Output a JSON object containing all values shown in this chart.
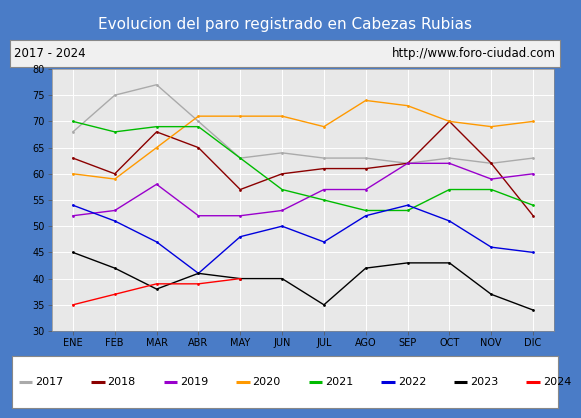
{
  "title": "Evolucion del paro registrado en Cabezas Rubias",
  "subtitle_left": "2017 - 2024",
  "subtitle_right": "http://www.foro-ciudad.com",
  "months": [
    "ENE",
    "FEB",
    "MAR",
    "ABR",
    "MAY",
    "JUN",
    "JUL",
    "AGO",
    "SEP",
    "OCT",
    "NOV",
    "DIC"
  ],
  "ylim": [
    30,
    80
  ],
  "yticks": [
    30,
    35,
    40,
    45,
    50,
    55,
    60,
    65,
    70,
    75,
    80
  ],
  "series": {
    "2017": {
      "color": "#aaaaaa",
      "values": [
        68,
        75,
        77,
        70,
        63,
        64,
        63,
        63,
        62,
        63,
        62,
        63
      ]
    },
    "2018": {
      "color": "#8b0000",
      "values": [
        63,
        60,
        68,
        65,
        57,
        60,
        61,
        61,
        62,
        70,
        62,
        52
      ]
    },
    "2019": {
      "color": "#9900cc",
      "values": [
        52,
        53,
        58,
        52,
        52,
        53,
        57,
        57,
        62,
        62,
        59,
        60
      ]
    },
    "2020": {
      "color": "#ff9900",
      "values": [
        60,
        59,
        65,
        71,
        71,
        71,
        69,
        74,
        73,
        70,
        69,
        70
      ]
    },
    "2021": {
      "color": "#00bb00",
      "values": [
        70,
        68,
        69,
        69,
        63,
        57,
        55,
        53,
        53,
        57,
        57,
        54
      ]
    },
    "2022": {
      "color": "#0000dd",
      "values": [
        54,
        51,
        47,
        41,
        48,
        50,
        47,
        52,
        54,
        51,
        46,
        45
      ]
    },
    "2023": {
      "color": "#000000",
      "values": [
        45,
        42,
        38,
        41,
        40,
        40,
        35,
        42,
        43,
        43,
        37,
        34
      ]
    },
    "2024": {
      "color": "#ff0000",
      "values": [
        35,
        37,
        39,
        39,
        40,
        null,
        null,
        null,
        null,
        null,
        null,
        null
      ]
    }
  },
  "legend_years": [
    "2017",
    "2018",
    "2019",
    "2020",
    "2021",
    "2022",
    "2023",
    "2024"
  ],
  "title_bg": "#4a7cc7",
  "title_color": "white",
  "subtitle_bg": "#f0f0f0",
  "outer_bg": "#4a7cc7",
  "plot_bg": "#e8e8e8",
  "grid_color": "white",
  "title_fontsize": 11,
  "subtitle_fontsize": 8.5,
  "tick_fontsize": 7,
  "legend_fontsize": 8
}
